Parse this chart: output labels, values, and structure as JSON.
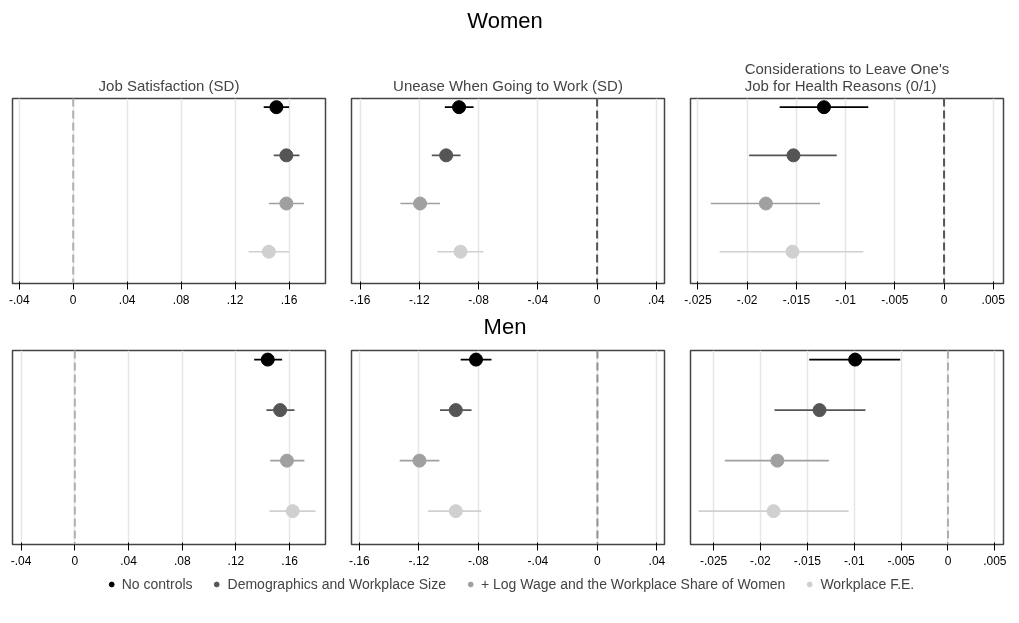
{
  "chart_data": [
    {
      "type": "scatter",
      "orientation": "horizontal",
      "title": "Job Satisfaction (SD)",
      "annotations": [
        "Women"
      ],
      "categories": [
        null,
        null,
        null,
        null
      ],
      "xlim": [
        -0.045,
        0.187
      ],
      "xticks": [
        {
          "value": -0.04,
          "label": "-.04"
        },
        {
          "value": 0,
          "label": "0"
        },
        {
          "value": 0.04,
          "label": ".04"
        },
        {
          "value": 0.08,
          "label": ".08"
        },
        {
          "value": 0.12,
          "label": ".12"
        },
        {
          "value": 0.16,
          "label": ".16"
        }
      ],
      "grid": "x",
      "tick_labels": "x",
      "marker": "circle",
      "legend": "bottom",
      "ref_lines": [
        {
          "axis": "x",
          "value": 0,
          "color": "#b0b0b0",
          "line_style": "dashed"
        }
      ],
      "series": [
        {
          "name": "No controls",
          "color": "#000000",
          "values": [
            0.1506,
            null,
            null,
            null
          ],
          "errors": [
            [
              0.1412,
              0.16
            ],
            null,
            null,
            null
          ]
        },
        {
          "name": "Demographics and Workplace Size",
          "color": "#555555",
          "values": [
            null,
            0.158,
            null,
            null
          ],
          "errors": [
            null,
            [
              0.1486,
              0.1677
            ],
            null,
            null
          ]
        },
        {
          "name": "+ Log Wage and the Workplace Share of Women",
          "color": "#a0a0a0",
          "values": [
            null,
            null,
            0.158,
            null
          ],
          "errors": [
            null,
            null,
            [
              0.145,
              0.171
            ],
            null
          ]
        },
        {
          "name": "Workplace F.E.",
          "color": "#d0d0d0",
          "values": [
            null,
            null,
            null,
            0.145
          ],
          "errors": [
            null,
            null,
            null,
            [
              0.13,
              0.16
            ]
          ]
        }
      ]
    },
    {
      "type": "scatter",
      "orientation": "horizontal",
      "title": "Unease When Going to Work (SD)",
      "categories": [
        null,
        null,
        null,
        null
      ],
      "xlim": [
        -0.1658,
        0.0455
      ],
      "xticks": [
        {
          "value": -0.16,
          "label": "-.16"
        },
        {
          "value": -0.12,
          "label": "-.12"
        },
        {
          "value": -0.08,
          "label": "-.08"
        },
        {
          "value": -0.04,
          "label": "-.04"
        },
        {
          "value": 0,
          "label": "0"
        },
        {
          "value": 0.04,
          "label": ".04"
        }
      ],
      "grid": "x",
      "tick_labels": "x",
      "marker": "circle",
      "ref_lines": [
        {
          "axis": "x",
          "value": 0,
          "color": "#555555",
          "line_style": "dashed"
        }
      ],
      "series": [
        {
          "color": "#000000",
          "values": [
            -0.0932,
            null,
            null,
            null
          ],
          "errors": [
            [
              -0.1028,
              -0.0834
            ],
            null,
            null,
            null
          ]
        },
        {
          "color": "#555555",
          "values": [
            null,
            -0.1019,
            null,
            null
          ],
          "errors": [
            null,
            [
              -0.1116,
              -0.0922
            ],
            null,
            null
          ]
        },
        {
          "color": "#a0a0a0",
          "values": [
            null,
            null,
            -0.1195,
            null
          ],
          "errors": [
            null,
            null,
            [
              -0.1328,
              -0.1061
            ],
            null
          ]
        },
        {
          "color": "#d0d0d0",
          "values": [
            null,
            null,
            null,
            -0.0922
          ],
          "errors": [
            null,
            null,
            null,
            [
              -0.1079,
              -0.0769
            ]
          ]
        }
      ]
    },
    {
      "type": "scatter",
      "orientation": "horizontal",
      "title": "Considerations to Leave One's\nJob for Health Reasons (0/1)",
      "categories": [
        null,
        null,
        null,
        null
      ],
      "xlim": [
        -0.02576,
        0.00604
      ],
      "xticks": [
        {
          "value": -0.025,
          "label": "-.025"
        },
        {
          "value": -0.02,
          "label": "-.02"
        },
        {
          "value": -0.015,
          "label": "-.015"
        },
        {
          "value": -0.01,
          "label": "-.01"
        },
        {
          "value": -0.005,
          "label": "-.005"
        },
        {
          "value": 0,
          "label": "0"
        },
        {
          "value": 0.005,
          "label": ".005"
        }
      ],
      "grid": "x",
      "tick_labels": "x",
      "marker": "circle",
      "ref_lines": [
        {
          "axis": "x",
          "value": 0,
          "color": "#555555",
          "line_style": "dashed"
        }
      ],
      "series": [
        {
          "color": "#000000",
          "values": [
            -0.0122,
            null,
            null,
            null
          ],
          "errors": [
            [
              -0.0167,
              -0.0077
            ],
            null,
            null,
            null
          ]
        },
        {
          "color": "#555555",
          "values": [
            null,
            -0.0153,
            null,
            null
          ],
          "errors": [
            null,
            [
              -0.0198,
              -0.0109
            ],
            null,
            null
          ]
        },
        {
          "color": "#a0a0a0",
          "values": [
            null,
            null,
            -0.0181,
            null
          ],
          "errors": [
            null,
            null,
            [
              -0.0237,
              -0.0126
            ],
            null
          ]
        },
        {
          "color": "#d0d0d0",
          "values": [
            null,
            null,
            null,
            -0.0154
          ],
          "errors": [
            null,
            null,
            null,
            [
              -0.0228,
              -0.0082
            ]
          ]
        }
      ]
    },
    {
      "type": "scatter",
      "orientation": "horizontal",
      "annotations": [
        "Men"
      ],
      "categories": [
        null,
        null,
        null,
        null
      ],
      "xlim": [
        -0.0464,
        0.1867
      ],
      "xticks": [
        {
          "value": -0.04,
          "label": "-.04"
        },
        {
          "value": 0,
          "label": "0"
        },
        {
          "value": 0.04,
          "label": ".04"
        },
        {
          "value": 0.08,
          "label": ".08"
        },
        {
          "value": 0.12,
          "label": ".12"
        },
        {
          "value": 0.16,
          "label": ".16"
        }
      ],
      "grid": "x",
      "tick_labels": "x",
      "marker": "circle",
      "ref_lines": [
        {
          "axis": "x",
          "value": 0,
          "color": "#b0b0b0",
          "line_style": "dashed"
        }
      ],
      "series": [
        {
          "color": "#000000",
          "values": [
            0.1437,
            null,
            null,
            null
          ],
          "errors": [
            [
              0.1336,
              0.1544
            ],
            null,
            null,
            null
          ]
        },
        {
          "color": "#555555",
          "values": [
            null,
            0.1529,
            null,
            null
          ],
          "errors": [
            null,
            [
              0.1427,
              0.1636
            ],
            null,
            null
          ]
        },
        {
          "color": "#a0a0a0",
          "values": [
            null,
            null,
            0.158,
            null
          ],
          "errors": [
            null,
            null,
            [
              0.1455,
              0.171
            ],
            null
          ]
        },
        {
          "color": "#d0d0d0",
          "values": [
            null,
            null,
            null,
            0.1623
          ],
          "errors": [
            null,
            null,
            null,
            [
              0.145,
              0.1793
            ]
          ]
        }
      ]
    },
    {
      "type": "scatter",
      "orientation": "horizontal",
      "categories": [
        null,
        null,
        null,
        null
      ],
      "xlim": [
        -0.1653,
        0.0451
      ],
      "xticks": [
        {
          "value": -0.16,
          "label": "-.16"
        },
        {
          "value": -0.12,
          "label": "-.12"
        },
        {
          "value": -0.08,
          "label": "-.08"
        },
        {
          "value": -0.04,
          "label": "-.04"
        },
        {
          "value": 0,
          "label": "0"
        },
        {
          "value": 0.04,
          "label": ".04"
        }
      ],
      "grid": "x",
      "tick_labels": "x",
      "marker": "circle",
      "ref_lines": [
        {
          "axis": "x",
          "value": 0,
          "color": "#909090",
          "line_style": "dashed"
        }
      ],
      "series": [
        {
          "color": "#000000",
          "values": [
            -0.0816,
            null,
            null,
            null
          ],
          "errors": [
            [
              -0.0919,
              -0.0712
            ],
            null,
            null,
            null
          ]
        },
        {
          "color": "#555555",
          "values": [
            null,
            -0.0952,
            null,
            null
          ],
          "errors": [
            null,
            [
              -0.1058,
              -0.0846
            ],
            null,
            null
          ]
        },
        {
          "color": "#a0a0a0",
          "values": [
            null,
            null,
            -0.1196,
            null
          ],
          "errors": [
            null,
            null,
            [
              -0.1329,
              -0.1062
            ],
            null
          ]
        },
        {
          "color": "#d0d0d0",
          "values": [
            null,
            null,
            null,
            -0.0952
          ],
          "errors": [
            null,
            null,
            null,
            [
              -0.1138,
              -0.0781
            ]
          ]
        }
      ]
    },
    {
      "type": "scatter",
      "orientation": "horizontal",
      "categories": [
        null,
        null,
        null,
        null
      ],
      "xlim": [
        -0.02746,
        0.00592
      ],
      "xticks": [
        {
          "value": -0.025,
          "label": "-.025"
        },
        {
          "value": -0.02,
          "label": "-.02"
        },
        {
          "value": -0.015,
          "label": "-.015"
        },
        {
          "value": -0.01,
          "label": "-.01"
        },
        {
          "value": -0.005,
          "label": "-.005"
        },
        {
          "value": 0,
          "label": "0"
        },
        {
          "value": 0.005,
          "label": ".005"
        }
      ],
      "grid": "x",
      "tick_labels": "x",
      "marker": "circle",
      "ref_lines": [
        {
          "axis": "x",
          "value": 0,
          "color": "#b0b0b0",
          "line_style": "dashed"
        }
      ],
      "series": [
        {
          "color": "#000000",
          "values": [
            -0.0099,
            null,
            null,
            null
          ],
          "errors": [
            [
              -0.0148,
              -0.0051
            ],
            null,
            null,
            null
          ]
        },
        {
          "color": "#555555",
          "values": [
            null,
            -0.0137,
            null,
            null
          ],
          "errors": [
            null,
            [
              -0.0185,
              -0.0088
            ],
            null,
            null
          ]
        },
        {
          "color": "#a0a0a0",
          "values": [
            null,
            null,
            -0.0182,
            null
          ],
          "errors": [
            null,
            null,
            [
              -0.0238,
              -0.0127
            ],
            null
          ]
        },
        {
          "color": "#d0d0d0",
          "values": [
            null,
            null,
            null,
            -0.0186
          ],
          "errors": [
            null,
            null,
            null,
            [
              -0.0266,
              -0.0106
            ]
          ]
        }
      ]
    }
  ]
}
